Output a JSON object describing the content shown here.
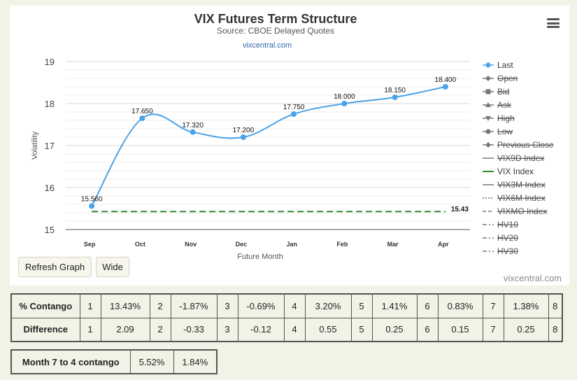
{
  "chart_data": {
    "type": "line",
    "title": "VIX Futures Term Structure",
    "subtitle": "Source: CBOE Delayed Quotes",
    "link": "vixcentral.com",
    "xlabel": "Future Month",
    "ylabel": "Volatility",
    "categories": [
      "Sep",
      "Oct",
      "Nov",
      "Dec",
      "Jan",
      "Feb",
      "Mar",
      "Apr"
    ],
    "ylim": [
      15,
      19
    ],
    "yticks": [
      "15",
      "16",
      "17",
      "18",
      "19"
    ],
    "series": [
      {
        "name": "Last",
        "color": "#4aa3e8",
        "values": [
          15.56,
          17.65,
          17.32,
          17.2,
          17.75,
          18.0,
          18.15,
          18.4
        ],
        "labels": [
          "15.560",
          "17.650",
          "17.320",
          "17.200",
          "17.750",
          "18.000",
          "18.150",
          "18.400"
        ]
      },
      {
        "name": "VIX Index",
        "color": "#2e8b2e",
        "value": 15.43,
        "label": "15.43",
        "style": "dashed"
      }
    ],
    "legend": {
      "placement": "right",
      "items": [
        {
          "label": "Last",
          "icon": "line-circle-icon",
          "hidden": false
        },
        {
          "label": "Open",
          "icon": "line-diamond-icon",
          "hidden": true
        },
        {
          "label": "Bid",
          "icon": "line-square-icon",
          "hidden": true
        },
        {
          "label": "Ask",
          "icon": "line-triangle-icon",
          "hidden": true
        },
        {
          "label": "High",
          "icon": "line-triangle-down-icon",
          "hidden": true
        },
        {
          "label": "Low",
          "icon": "line-circle-icon",
          "hidden": true
        },
        {
          "label": "Previous Close",
          "icon": "line-diamond-icon",
          "hidden": true
        },
        {
          "label": "VIX9D Index",
          "icon": "solid-line-icon",
          "hidden": true
        },
        {
          "label": "VIX Index",
          "icon": "solid-line-icon",
          "hidden": false,
          "color": "#2e8b2e"
        },
        {
          "label": "VIX3M Index",
          "icon": "solid-line-icon",
          "hidden": true
        },
        {
          "label": "VIX6M Index",
          "icon": "dotted-line-icon",
          "hidden": true
        },
        {
          "label": "VIXMO Index",
          "icon": "dashed-line-icon",
          "hidden": true
        },
        {
          "label": "HV10",
          "icon": "dash-dot-line-icon",
          "hidden": true
        },
        {
          "label": "HV20",
          "icon": "dash-dot-line-icon",
          "hidden": true
        },
        {
          "label": "HV30",
          "icon": "dash-dot-line-icon",
          "hidden": true
        }
      ]
    },
    "grid": true,
    "credit": "vixcentral.com"
  },
  "controls": {
    "refresh_label": "Refresh Graph",
    "wide_label": "Wide",
    "menu_icon": "hamburger-menu-icon"
  },
  "contango_table": {
    "rows": [
      {
        "label": "% Contango",
        "cells": [
          "1",
          "13.43%",
          "2",
          "-1.87%",
          "3",
          "-0.69%",
          "4",
          "3.20%",
          "5",
          "1.41%",
          "6",
          "0.83%",
          "7",
          "1.38%",
          "8"
        ]
      },
      {
        "label": "Difference",
        "cells": [
          "1",
          "2.09",
          "2",
          "-0.33",
          "3",
          "-0.12",
          "4",
          "0.55",
          "5",
          "0.25",
          "6",
          "0.15",
          "7",
          "0.25",
          "8"
        ]
      }
    ]
  },
  "month_table": {
    "label": "Month 7 to 4 contango",
    "values": [
      "5.52%",
      "1.84%"
    ]
  }
}
